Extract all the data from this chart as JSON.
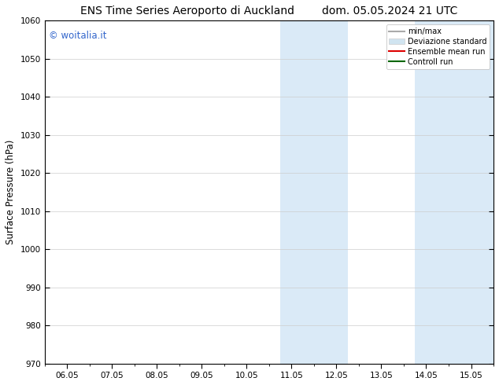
{
  "title": "ENS Time Series Aeroporto di Auckland        dom. 05.05.2024 21 UTC",
  "ylabel": "Surface Pressure (hPa)",
  "ylim": [
    970,
    1060
  ],
  "yticks": [
    970,
    980,
    990,
    1000,
    1010,
    1020,
    1030,
    1040,
    1050,
    1060
  ],
  "xtick_labels": [
    "06.05",
    "07.05",
    "08.05",
    "09.05",
    "10.05",
    "11.05",
    "12.05",
    "13.05",
    "14.05",
    "15.05"
  ],
  "x_values": [
    0,
    1,
    2,
    3,
    4,
    5,
    6,
    7,
    8,
    9
  ],
  "xlim": [
    -0.5,
    9.5
  ],
  "shaded_bands": [
    {
      "x_start": 4.75,
      "x_end": 6.25
    },
    {
      "x_start": 7.75,
      "x_end": 9.5
    }
  ],
  "shade_color": "#daeaf7",
  "watermark_text": "© woitalia.it",
  "watermark_color": "#3366cc",
  "legend_items": [
    {
      "label": "min/max",
      "color": "#aaaaaa",
      "type": "hline"
    },
    {
      "label": "Deviazione standard",
      "color": "#d0e4f0",
      "type": "patch"
    },
    {
      "label": "Ensemble mean run",
      "color": "#dd0000",
      "type": "line"
    },
    {
      "label": "Controll run",
      "color": "#006600",
      "type": "line"
    }
  ],
  "bg_color": "#ffffff",
  "plot_bg_color": "#ffffff",
  "grid_color": "#cccccc",
  "title_fontsize": 10,
  "tick_fontsize": 7.5,
  "ylabel_fontsize": 8.5,
  "watermark_fontsize": 8.5,
  "legend_fontsize": 7
}
